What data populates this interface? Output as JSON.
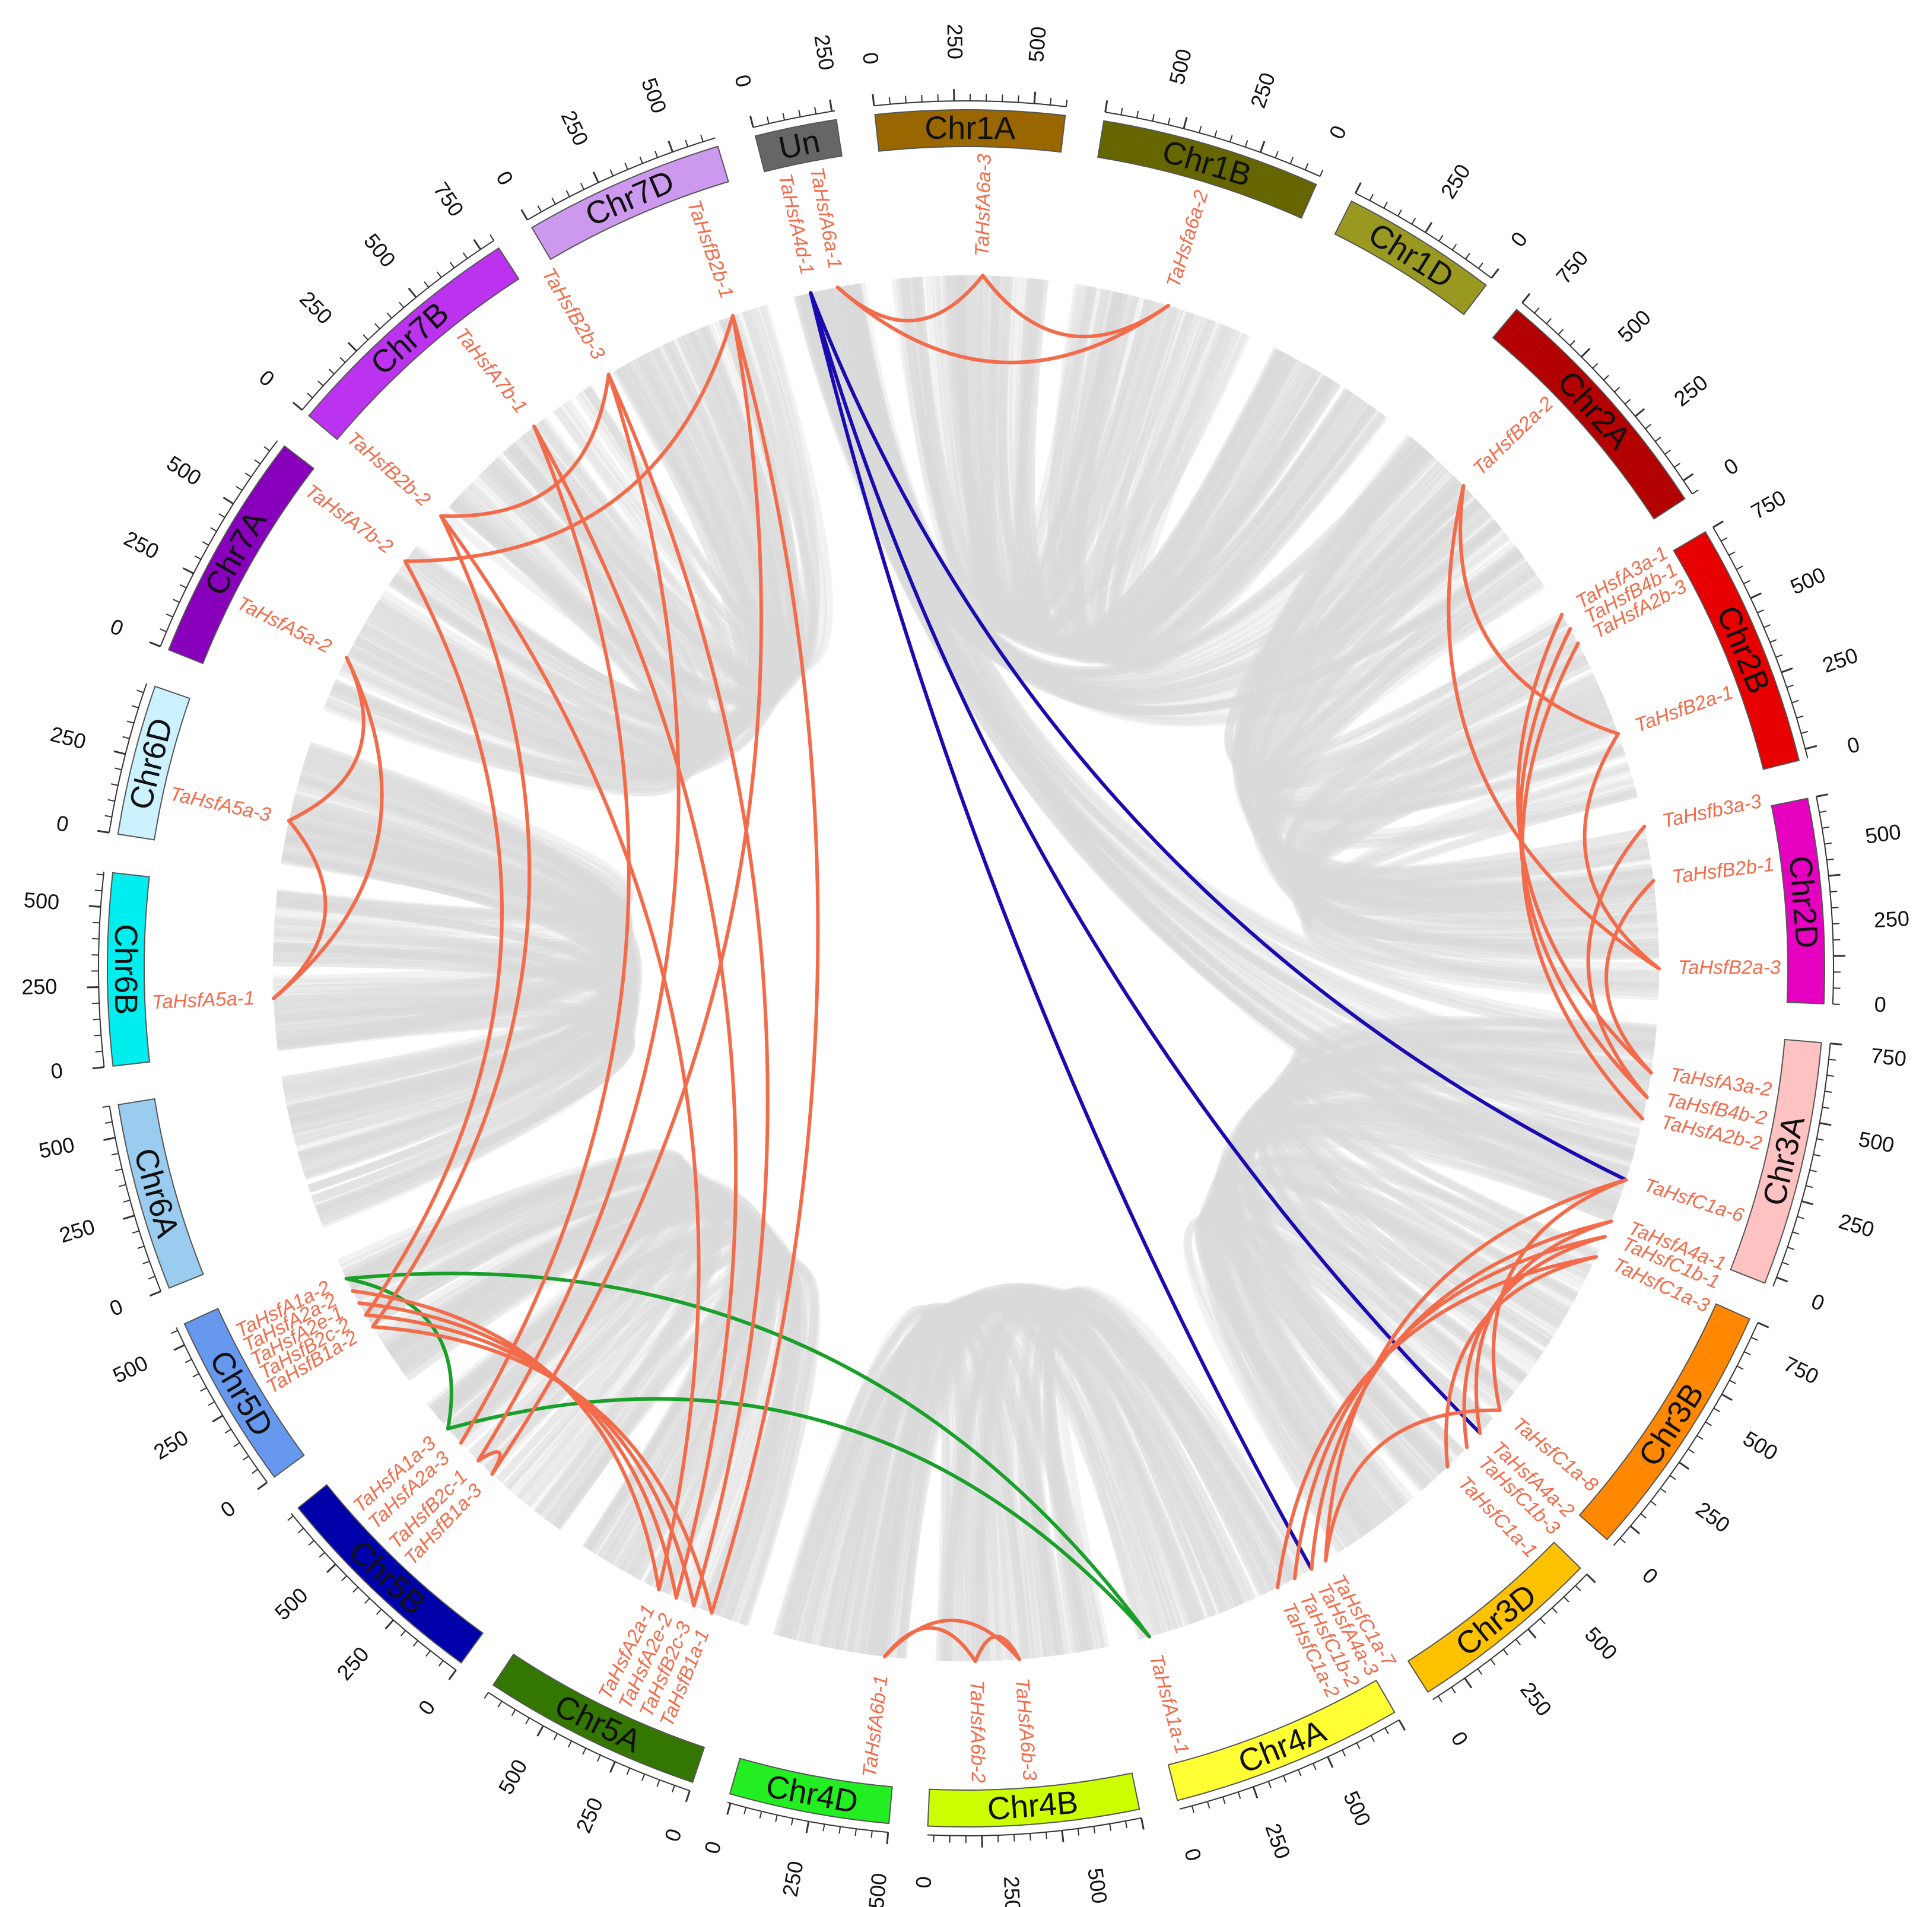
{
  "diagram": {
    "chromosomes": [
      {
        "name": "Un",
        "color": "#666666",
        "length": 260,
        "label_dir": "cw",
        "ticks": [
          "250",
          "0"
        ]
      },
      {
        "name": "Chr1A",
        "color": "#996600",
        "length": 600,
        "label_dir": "cw",
        "ticks": [
          "500",
          "250",
          "0"
        ]
      },
      {
        "name": "Chr1B",
        "color": "#666600",
        "length": 700,
        "label_dir": "ccw",
        "ticks": [
          "500",
          "250",
          "0"
        ]
      },
      {
        "name": "Chr1D",
        "color": "#999922",
        "length": 500,
        "label_dir": "ccw",
        "ticks": [
          "250",
          "0"
        ]
      },
      {
        "name": "Chr2A",
        "color": "#b30000",
        "length": 800,
        "label_dir": "ccw",
        "ticks": [
          "750",
          "500",
          "250",
          "0"
        ]
      },
      {
        "name": "Chr2B",
        "color": "#e60000",
        "length": 780,
        "label_dir": "ccw",
        "ticks": [
          "750",
          "500",
          "250",
          "0"
        ]
      },
      {
        "name": "Chr2D",
        "color": "#e600bf",
        "length": 650,
        "label_dir": "ccw",
        "ticks": [
          "500",
          "250",
          "0"
        ]
      },
      {
        "name": "Chr3A",
        "color": "#ffc2c2",
        "length": 780,
        "label_dir": "ccw",
        "ticks": [
          "750",
          "500",
          "250",
          "0"
        ]
      },
      {
        "name": "Chr3B",
        "color": "#ff8800",
        "length": 830,
        "label_dir": "ccw",
        "ticks": [
          "750",
          "500",
          "250",
          "0"
        ]
      },
      {
        "name": "Chr3D",
        "color": "#ffc200",
        "length": 620,
        "label_dir": "ccw",
        "ticks": [
          "500",
          "250",
          "0"
        ]
      },
      {
        "name": "Chr4A",
        "color": "#ffff33",
        "length": 740,
        "label_dir": "ccw",
        "ticks": [
          "500",
          "250",
          "0"
        ]
      },
      {
        "name": "Chr4B",
        "color": "#ccff00",
        "length": 670,
        "label_dir": "ccw",
        "ticks": [
          "500",
          "250",
          "0"
        ]
      },
      {
        "name": "Chr4D",
        "color": "#22ee22",
        "length": 510,
        "label_dir": "ccw",
        "ticks": [
          "500",
          "250",
          "0"
        ]
      },
      {
        "name": "Chr5A",
        "color": "#337700",
        "length": 700,
        "label_dir": "cw",
        "ticks": [
          "0",
          "250",
          "500"
        ]
      },
      {
        "name": "Chr5B",
        "color": "#0000aa",
        "length": 710,
        "label_dir": "cw",
        "ticks": [
          "0",
          "250",
          "500"
        ]
      },
      {
        "name": "Chr5D",
        "color": "#6699ee",
        "length": 560,
        "label_dir": "cw",
        "ticks": [
          "0",
          "250",
          "500"
        ]
      },
      {
        "name": "Chr6A",
        "color": "#99ccee",
        "length": 600,
        "label_dir": "cw",
        "ticks": [
          "0",
          "250",
          "500"
        ]
      },
      {
        "name": "Chr6B",
        "color": "#00eeee",
        "length": 610,
        "label_dir": "cw",
        "ticks": [
          "0",
          "250",
          "500"
        ]
      },
      {
        "name": "Chr6D",
        "color": "#ccf2ff",
        "length": 480,
        "label_dir": "cw",
        "ticks": [
          "0",
          "250"
        ]
      },
      {
        "name": "Chr7A",
        "color": "#8800bb",
        "length": 740,
        "label_dir": "cw",
        "ticks": [
          "0",
          "250",
          "500"
        ]
      },
      {
        "name": "Chr7B",
        "color": "#bb33ee",
        "length": 800,
        "label_dir": "cw",
        "ticks": [
          "0",
          "250",
          "500",
          "750"
        ]
      },
      {
        "name": "Chr7D",
        "color": "#cc99ee",
        "length": 640,
        "label_dir": "cw",
        "ticks": [
          "0",
          "250",
          "500"
        ]
      }
    ],
    "genes": [
      {
        "id": "g1",
        "label": "TaHsfA4d-1",
        "pos": 0.55
      },
      {
        "id": "g2",
        "label": "TaHsfA6a-1",
        "pos": 1.55
      },
      {
        "id": "g3",
        "label": "TaHsfA6a-3",
        "pos": 6.85
      },
      {
        "id": "g4",
        "label": "TaHsfa6a-2",
        "pos": 13.7
      },
      {
        "id": "g5",
        "label": "TaHsfB2a-2",
        "pos": 26.4
      },
      {
        "id": "g6",
        "label": "TaHsfA3a-1",
        "pos": 32.3
      },
      {
        "id": "g7",
        "label": "TaHsfB4b-1",
        "pos": 32.9
      },
      {
        "id": "g8",
        "label": "TaHsfA2b-3",
        "pos": 33.5
      },
      {
        "id": "g9",
        "label": "TaHsfB2a-1",
        "pos": 37.1
      },
      {
        "id": "g10",
        "label": "TaHsfb3a-3",
        "pos": 40.6
      },
      {
        "id": "g11",
        "label": "TaHsfB2b-1",
        "pos": 42.6
      },
      {
        "id": "g12",
        "label": "TaHsfB2a-3",
        "pos": 45.8
      },
      {
        "id": "g13",
        "label": "TaHsfA3a-2",
        "pos": 49.6
      },
      {
        "id": "g14",
        "label": "TaHsfB4b-2",
        "pos": 50.5
      },
      {
        "id": "g15",
        "label": "TaHsfA2b-2",
        "pos": 51.3
      },
      {
        "id": "g16",
        "label": "TaHsfC1a-6",
        "pos": 53.6
      },
      {
        "id": "g17",
        "label": "TaHsfA4a-1",
        "pos": 55.2
      },
      {
        "id": "g18",
        "label": "TaHsfC1b-1",
        "pos": 55.8
      },
      {
        "id": "g19",
        "label": "TaHsfC1a-3",
        "pos": 56.6
      },
      {
        "id": "g20",
        "label": "TaHsfC1a-8",
        "pos": 63.2
      },
      {
        "id": "g21",
        "label": "TaHsfA4a-2",
        "pos": 64.3
      },
      {
        "id": "g22",
        "label": "TaHsfC1b-3",
        "pos": 65.0
      },
      {
        "id": "g23",
        "label": "TaHsfC1a-1",
        "pos": 66.0
      },
      {
        "id": "g24",
        "label": "TaHsfC1a-7",
        "pos": 71.6
      },
      {
        "id": "g25",
        "label": "TaHsfA4a-3",
        "pos": 72.2
      },
      {
        "id": "g26",
        "label": "TaHsfC1b-2",
        "pos": 72.9
      },
      {
        "id": "g27",
        "label": "TaHsfC1a-2",
        "pos": 73.6
      },
      {
        "id": "g28",
        "label": "TaHsfA1a-1",
        "pos": 78.6
      },
      {
        "id": "g29",
        "label": "TaHsfA6b-3",
        "pos": 83.4
      },
      {
        "id": "g30",
        "label": "TaHsfA6b-2",
        "pos": 85.0
      },
      {
        "id": "g31",
        "label": "TaHsfA6b-1",
        "pos": 88.3
      },
      {
        "id": "g32",
        "label": "TaHsfB1a-1",
        "pos": 94.8
      },
      {
        "id": "g33",
        "label": "TaHsfB2c-3",
        "pos": 95.5
      },
      {
        "id": "g34",
        "label": "TaHsfA2e-2",
        "pos": 96.2
      },
      {
        "id": "g35",
        "label": "TaHsfA2a-1",
        "pos": 96.9
      },
      {
        "id": "g36",
        "label": "TaHsfB1a-3",
        "pos": 104.3
      },
      {
        "id": "g37",
        "label": "TaHsfB2c-1",
        "pos": 105.0
      },
      {
        "id": "g38",
        "label": "TaHsfA2a-3",
        "pos": 105.9
      },
      {
        "id": "g39",
        "label": "TaHsfA1a-3",
        "pos": 106.6
      },
      {
        "id": "g40",
        "label": "TaHsfB1a-2",
        "pos": 111.2
      },
      {
        "id": "g41",
        "label": "TaHsfB2c-2",
        "pos": 111.7
      },
      {
        "id": "g42",
        "label": "TaHsfA2e-1",
        "pos": 112.2
      },
      {
        "id": "g43",
        "label": "TaHsfA2a-2",
        "pos": 112.7
      },
      {
        "id": "g44",
        "label": "TaHsfA1a-2",
        "pos": 113.2
      },
      {
        "id": "g45",
        "label": "TaHsfA5a-1",
        "pos": 123.8
      },
      {
        "id": "g46",
        "label": "TaHsfA5a-3",
        "pos": 130.3
      },
      {
        "id": "g47",
        "label": "TaHsfA5a-2",
        "pos": 136.6
      },
      {
        "id": "g48",
        "label": "TaHsfA7b-2",
        "pos": 140.7
      },
      {
        "id": "g49",
        "label": "TaHsfB2b-2",
        "pos": 142.8
      },
      {
        "id": "g50",
        "label": "TaHsfA7b-1",
        "pos": 147.5
      },
      {
        "id": "g51",
        "label": "TaHsfB2b-3",
        "pos": 150.8
      },
      {
        "id": "g52",
        "label": "TaHsfB2b-1",
        "pos": 155.8
      }
    ],
    "links": [
      {
        "a": "g1",
        "b": "g16",
        "color": "#1a0ab0"
      },
      {
        "a": "g1",
        "b": "g21",
        "color": "#1a0ab0"
      },
      {
        "a": "g1",
        "b": "g25",
        "color": "#1a0ab0"
      },
      {
        "a": "g2",
        "b": "g3",
        "color": "#f26b4a"
      },
      {
        "a": "g2",
        "b": "g4",
        "color": "#f26b4a"
      },
      {
        "a": "g3",
        "b": "g4",
        "color": "#f26b4a"
      },
      {
        "a": "g5",
        "b": "g9",
        "color": "#f26b4a"
      },
      {
        "a": "g5",
        "b": "g12",
        "color": "#f26b4a"
      },
      {
        "a": "g9",
        "b": "g12",
        "color": "#f26b4a"
      },
      {
        "a": "g6",
        "b": "g13",
        "color": "#f26b4a"
      },
      {
        "a": "g7",
        "b": "g14",
        "color": "#f26b4a"
      },
      {
        "a": "g8",
        "b": "g15",
        "color": "#f26b4a"
      },
      {
        "a": "g10",
        "b": "g14",
        "color": "#f26b4a"
      },
      {
        "a": "g11",
        "b": "g13",
        "color": "#f26b4a"
      },
      {
        "a": "g16",
        "b": "g20",
        "color": "#f26b4a"
      },
      {
        "a": "g16",
        "b": "g24",
        "color": "#f26b4a"
      },
      {
        "a": "g17",
        "b": "g21",
        "color": "#f26b4a"
      },
      {
        "a": "g18",
        "b": "g22",
        "color": "#f26b4a"
      },
      {
        "a": "g19",
        "b": "g23",
        "color": "#f26b4a"
      },
      {
        "a": "g17",
        "b": "g25",
        "color": "#f26b4a"
      },
      {
        "a": "g18",
        "b": "g26",
        "color": "#f26b4a"
      },
      {
        "a": "g19",
        "b": "g27",
        "color": "#f26b4a"
      },
      {
        "a": "g20",
        "b": "g24",
        "color": "#f26b4a"
      },
      {
        "a": "g29",
        "b": "g31",
        "color": "#f26b4a"
      },
      {
        "a": "g30",
        "b": "g31",
        "color": "#f26b4a"
      },
      {
        "a": "g29",
        "b": "g30",
        "color": "#f26b4a"
      },
      {
        "a": "g28",
        "b": "g39",
        "color": "#1aa02a"
      },
      {
        "a": "g28",
        "b": "g44",
        "color": "#1aa02a"
      },
      {
        "a": "g39",
        "b": "g44",
        "color": "#1aa02a"
      },
      {
        "a": "g32",
        "b": "g40",
        "color": "#f26b4a"
      },
      {
        "a": "g33",
        "b": "g41",
        "color": "#f26b4a"
      },
      {
        "a": "g34",
        "b": "g42",
        "color": "#f26b4a"
      },
      {
        "a": "g35",
        "b": "g43",
        "color": "#f26b4a"
      },
      {
        "a": "g32",
        "b": "g52",
        "color": "#f26b4a"
      },
      {
        "a": "g33",
        "b": "g51",
        "color": "#f26b4a"
      },
      {
        "a": "g34",
        "b": "g50",
        "color": "#f26b4a"
      },
      {
        "a": "g35",
        "b": "g49",
        "color": "#f26b4a"
      },
      {
        "a": "g36",
        "b": "g52",
        "color": "#f26b4a"
      },
      {
        "a": "g37",
        "b": "g51",
        "color": "#f26b4a"
      },
      {
        "a": "g38",
        "b": "g50",
        "color": "#f26b4a"
      },
      {
        "a": "g40",
        "b": "g49",
        "color": "#f26b4a"
      },
      {
        "a": "g41",
        "b": "g48",
        "color": "#f26b4a"
      },
      {
        "a": "g45",
        "b": "g46",
        "color": "#f26b4a"
      },
      {
        "a": "g45",
        "b": "g47",
        "color": "#f26b4a"
      },
      {
        "a": "g46",
        "b": "g47",
        "color": "#f26b4a"
      },
      {
        "a": "g48",
        "b": "g52",
        "color": "#f26b4a"
      },
      {
        "a": "g49",
        "b": "g51",
        "color": "#f26b4a"
      },
      {
        "a": "g36",
        "b": "g37",
        "color": "#f26b4a"
      }
    ],
    "label_color": "#f26b4a",
    "background_link_color": "#d9d9d9"
  }
}
